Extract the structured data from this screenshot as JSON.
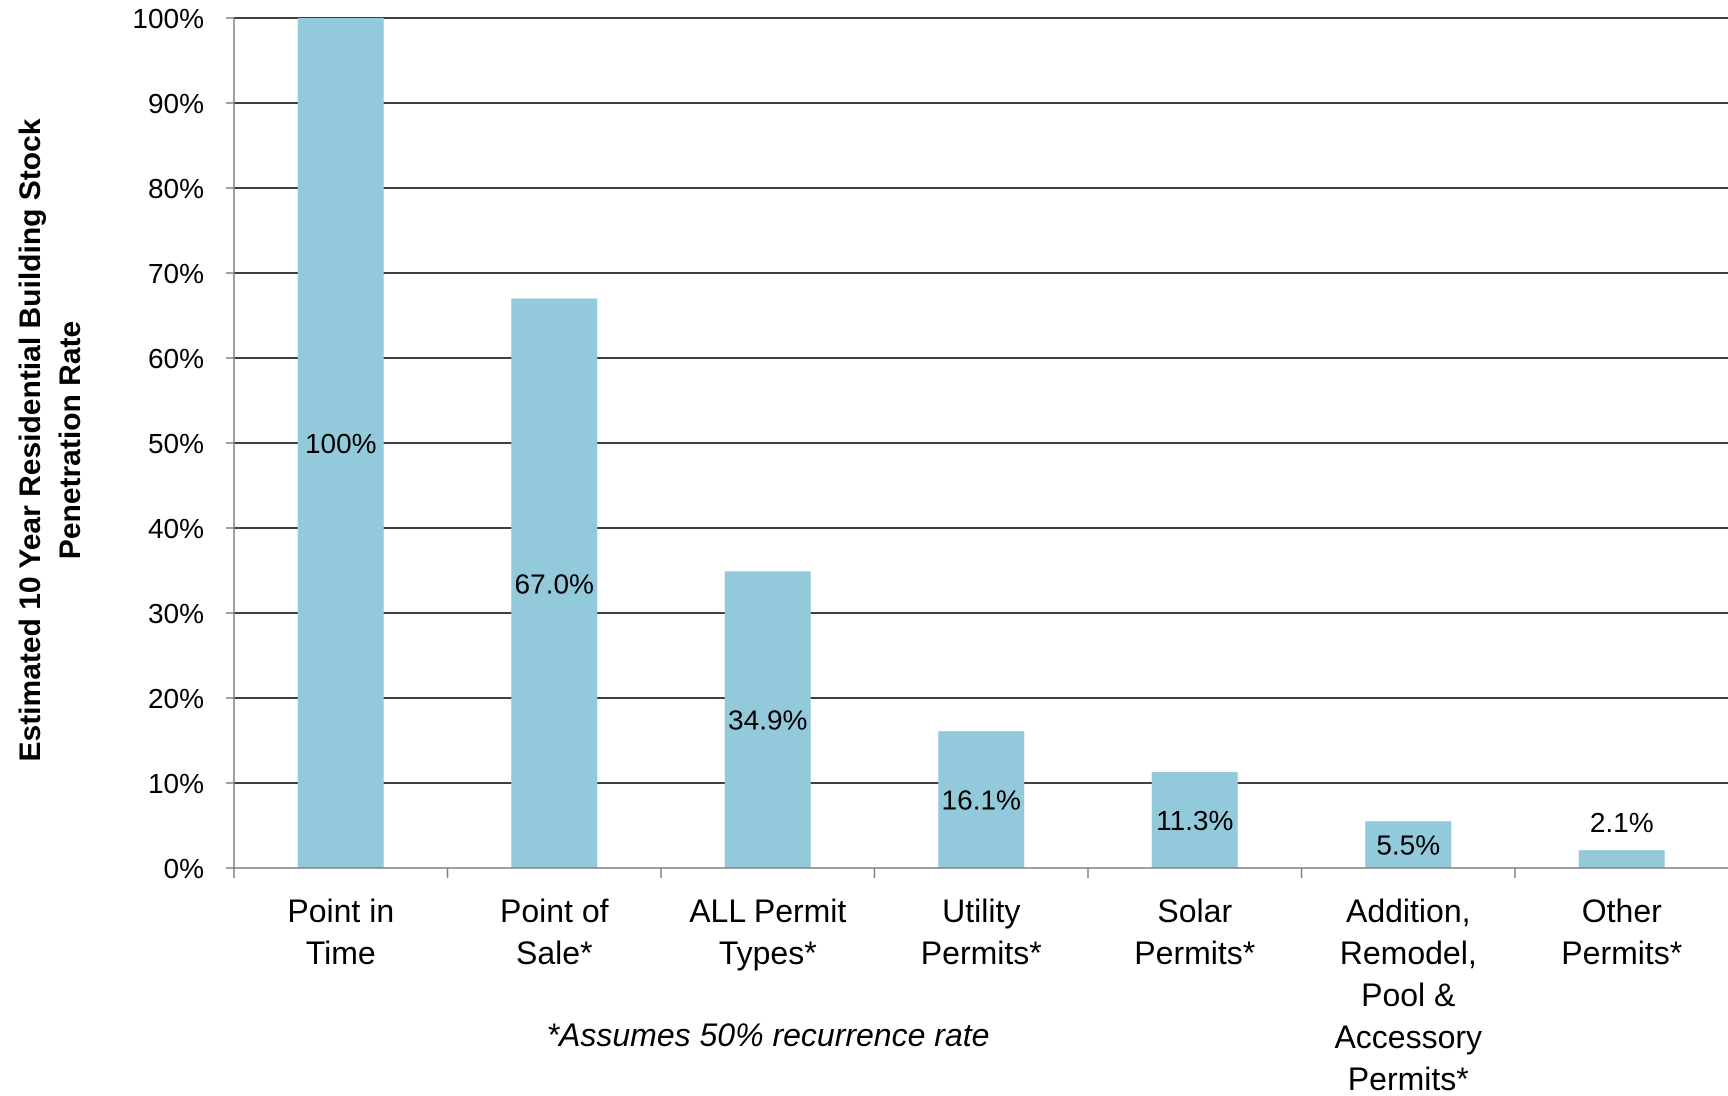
{
  "chart_data": {
    "type": "bar",
    "title": "",
    "categories": [
      [
        "Point in",
        "Time"
      ],
      [
        "Point of",
        "Sale*"
      ],
      [
        "ALL Permit",
        "Types*"
      ],
      [
        "Utility",
        "Permits*"
      ],
      [
        "Solar",
        "Permits*"
      ],
      [
        "Addition,",
        "Remodel,",
        "Pool &",
        "Accessory",
        "Permits*"
      ],
      [
        "Other",
        "Permits*"
      ]
    ],
    "values": [
      100,
      67.0,
      34.9,
      16.1,
      11.3,
      5.5,
      2.1
    ],
    "data_labels": [
      "100%",
      "67.0%",
      "34.9%",
      "16.1%",
      "11.3%",
      "5.5%",
      "2.1%"
    ],
    "ylabel": [
      "Estimated 10 Year  Residential Building Stock",
      "Penetration Rate"
    ],
    "xlabel": "",
    "ylim": [
      0,
      100
    ],
    "yticks": [
      "0%",
      "10%",
      "20%",
      "30%",
      "40%",
      "50%",
      "60%",
      "70%",
      "80%",
      "90%",
      "100%"
    ],
    "grid": true,
    "legend": "none",
    "footnote": "*Assumes 50% recurrence rate",
    "colors": {
      "bar": "#92CADB",
      "grid": "#000000",
      "axis": "#808080"
    }
  }
}
